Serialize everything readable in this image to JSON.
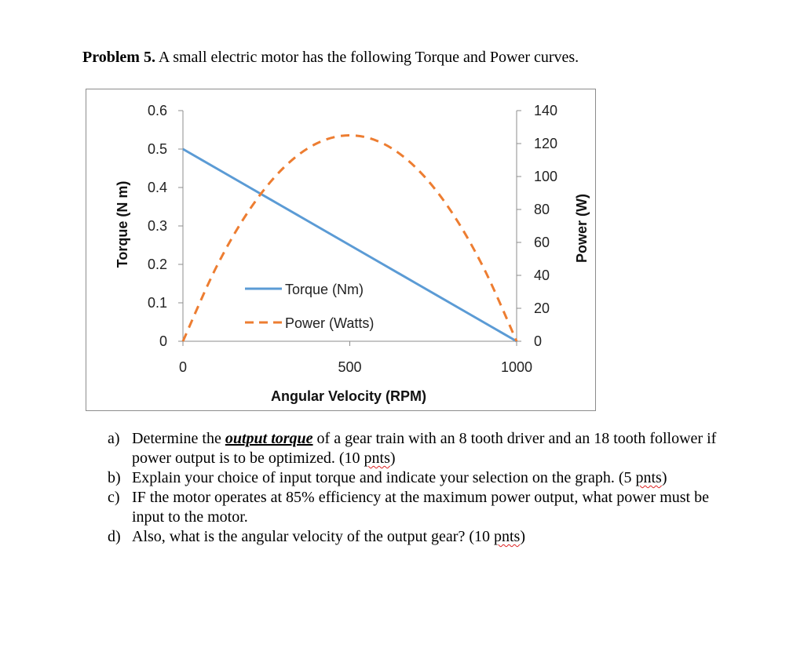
{
  "title": {
    "bold": "Problem 5.",
    "rest": " A small electric motor has the following Torque and Power curves."
  },
  "chart_data": {
    "type": "line",
    "xlabel": "Angular Velocity (RPM)",
    "ylabel": "Torque (N m)",
    "y2label": "Power (W)",
    "xlim": [
      0,
      1000
    ],
    "ylim": [
      0,
      0.6
    ],
    "y2lim": [
      0,
      140
    ],
    "xticks": [
      "0",
      "500",
      "1000"
    ],
    "yticks": [
      "0",
      "0.1",
      "0.2",
      "0.3",
      "0.4",
      "0.5",
      "0.6"
    ],
    "y2ticks": [
      "0",
      "20",
      "40",
      "60",
      "80",
      "100",
      "120",
      "140"
    ],
    "grid": false,
    "legend": "center",
    "x": [
      0,
      100,
      200,
      300,
      400,
      500,
      600,
      700,
      800,
      900,
      1000
    ],
    "series": [
      {
        "name": "Torque (Nm)",
        "axis": "left",
        "style": "solid",
        "color": "#5b9bd5",
        "values": [
          0.5,
          0.45,
          0.4,
          0.35,
          0.3,
          0.25,
          0.2,
          0.15,
          0.1,
          0.05,
          0
        ]
      },
      {
        "name": "Power (Watts)",
        "axis": "right",
        "style": "dashed",
        "color": "#ed7d31",
        "values": [
          0,
          45,
          80,
          105,
          120,
          125,
          120,
          105,
          80,
          45,
          0
        ]
      }
    ]
  },
  "questions": [
    {
      "label": "a)",
      "t1": "Determine the ",
      "em": "output torque",
      "t2": " of a gear train with an 8 tooth driver and an 18 tooth follower if power output is to be optimized. (10 ",
      "sp": "pnts",
      "t3": ")"
    },
    {
      "label": "b)",
      "t1": "Explain your choice of input torque and indicate your selection on the graph. (5 ",
      "sp": "pnts",
      "t3": ")"
    },
    {
      "label": "c)",
      "t1": "IF the motor operates at 85% efficiency at the maximum power output, what power must be input to the motor."
    },
    {
      "label": "d)",
      "t1": "Also, what is the angular velocity of the output gear? (10 ",
      "sp": "pnts",
      "t3": ")"
    }
  ]
}
